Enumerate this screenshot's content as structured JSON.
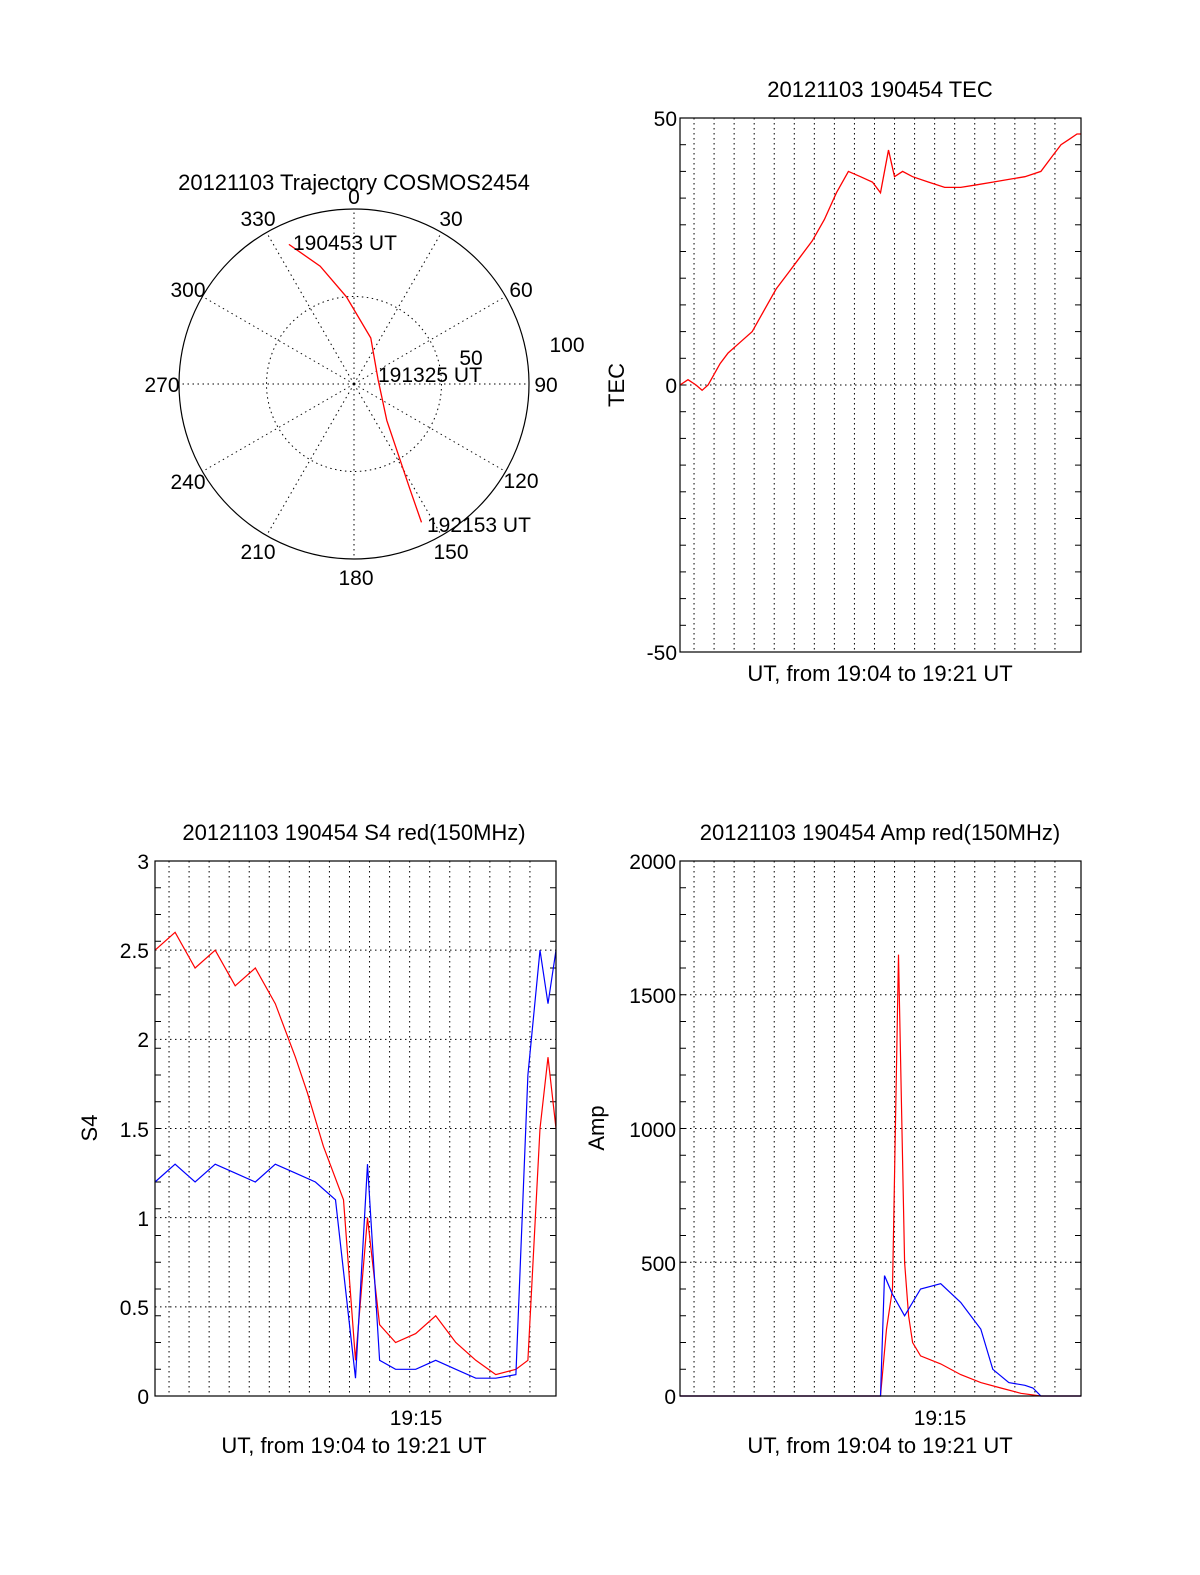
{
  "colors": {
    "red": "#ff0000",
    "blue": "#0000ff"
  },
  "chart_data": [
    {
      "id": "polar",
      "type": "polar-trajectory",
      "title": "20121103 Trajectory COSMOS2454",
      "angle_labels": [
        "0",
        "30",
        "60",
        "90",
        "120",
        "150",
        "180",
        "210",
        "240",
        "270",
        "300",
        "330"
      ],
      "radial_labels": [
        "50",
        "100"
      ],
      "rlim": [
        0,
        100
      ],
      "grid": true,
      "trajectory": {
        "series_color": "red",
        "points": [
          {
            "az": 335,
            "r": 88
          },
          {
            "az": 344,
            "r": 70
          },
          {
            "az": 355,
            "r": 50
          },
          {
            "az": 20,
            "r": 28
          },
          {
            "az": 80,
            "r": 14
          },
          {
            "az": 138,
            "r": 28
          },
          {
            "az": 148,
            "r": 48
          },
          {
            "az": 152,
            "r": 68
          },
          {
            "az": 154,
            "r": 88
          }
        ]
      },
      "annotations": [
        "190453 UT",
        "191325 UT",
        "192153 UT"
      ]
    },
    {
      "id": "tec",
      "type": "line",
      "title": "20121103 190454 TEC",
      "xlabel": "UT, from 19:04 to 19:21 UT",
      "ylabel": "TEC",
      "xlim": [
        0,
        1
      ],
      "ylim": [
        -50,
        50
      ],
      "yticks": [
        "50",
        "0",
        "-50"
      ],
      "grid": true,
      "series": [
        {
          "color": "red",
          "x": [
            0.0,
            0.02,
            0.04,
            0.055,
            0.07,
            0.1,
            0.12,
            0.15,
            0.18,
            0.21,
            0.24,
            0.27,
            0.3,
            0.33,
            0.36,
            0.39,
            0.42,
            0.45,
            0.48,
            0.5,
            0.52,
            0.535,
            0.555,
            0.58,
            0.62,
            0.66,
            0.7,
            0.74,
            0.78,
            0.82,
            0.86,
            0.9,
            0.93,
            0.95,
            0.97,
            0.99,
            1.0
          ],
          "y": [
            0,
            1,
            0,
            -1,
            0,
            4,
            6,
            8,
            10,
            14,
            18,
            21,
            24,
            27,
            31,
            36,
            40,
            39,
            38,
            36,
            44,
            39,
            40,
            39,
            38,
            37,
            37,
            37.5,
            38,
            38.5,
            39,
            40,
            43,
            45,
            46,
            47,
            47
          ]
        }
      ]
    },
    {
      "id": "s4",
      "type": "line",
      "title": "20121103 190454 S4 red(150MHz)",
      "xlabel": "UT, from 19:04 to 19:21 UT",
      "ylabel": "S4",
      "xtick_labels": [
        "19:15"
      ],
      "ylim": [
        0,
        3
      ],
      "yticks": [
        "3",
        "2.5",
        "2",
        "1.5",
        "1",
        "0.5",
        "0"
      ],
      "grid": true,
      "series": [
        {
          "color": "red",
          "x": [
            0.0,
            0.05,
            0.1,
            0.15,
            0.2,
            0.25,
            0.3,
            0.35,
            0.38,
            0.42,
            0.47,
            0.5,
            0.53,
            0.56,
            0.6,
            0.65,
            0.7,
            0.75,
            0.8,
            0.85,
            0.9,
            0.93,
            0.96,
            0.98,
            1.0
          ],
          "y": [
            2.5,
            2.6,
            2.4,
            2.5,
            2.3,
            2.4,
            2.2,
            1.9,
            1.7,
            1.4,
            1.1,
            0.2,
            1.0,
            0.4,
            0.3,
            0.35,
            0.45,
            0.3,
            0.2,
            0.12,
            0.15,
            0.2,
            1.5,
            1.9,
            1.5
          ]
        },
        {
          "color": "blue",
          "x": [
            0.0,
            0.05,
            0.1,
            0.15,
            0.2,
            0.25,
            0.3,
            0.35,
            0.4,
            0.45,
            0.5,
            0.53,
            0.56,
            0.6,
            0.65,
            0.7,
            0.75,
            0.8,
            0.85,
            0.9,
            0.93,
            0.96,
            0.98,
            1.0
          ],
          "y": [
            1.2,
            1.3,
            1.2,
            1.3,
            1.25,
            1.2,
            1.3,
            1.25,
            1.2,
            1.1,
            0.1,
            1.3,
            0.2,
            0.15,
            0.15,
            0.2,
            0.15,
            0.1,
            0.1,
            0.12,
            1.8,
            2.5,
            2.2,
            2.5
          ]
        }
      ]
    },
    {
      "id": "amp",
      "type": "line",
      "title": "20121103 190454 Amp red(150MHz)",
      "xlabel": "UT, from 19:04 to 19:21 UT",
      "ylabel": "Amp",
      "xtick_labels": [
        "19:15"
      ],
      "ylim": [
        0,
        2000
      ],
      "yticks": [
        "2000",
        "1500",
        "1000",
        "500",
        "0"
      ],
      "grid": true,
      "series": [
        {
          "color": "red",
          "x": [
            0.0,
            0.5,
            0.515,
            0.53,
            0.545,
            0.56,
            0.57,
            0.58,
            0.6,
            0.65,
            0.7,
            0.75,
            0.8,
            0.85,
            0.9,
            1.0
          ],
          "y": [
            0,
            0,
            250,
            400,
            1650,
            500,
            300,
            200,
            150,
            120,
            80,
            50,
            30,
            10,
            0,
            0
          ]
        },
        {
          "color": "blue",
          "x": [
            0.0,
            0.5,
            0.51,
            0.53,
            0.56,
            0.6,
            0.65,
            0.7,
            0.75,
            0.78,
            0.82,
            0.86,
            0.88,
            0.9,
            1.0
          ],
          "y": [
            0,
            0,
            450,
            380,
            300,
            400,
            420,
            350,
            250,
            100,
            50,
            40,
            30,
            0,
            0
          ]
        }
      ]
    }
  ]
}
